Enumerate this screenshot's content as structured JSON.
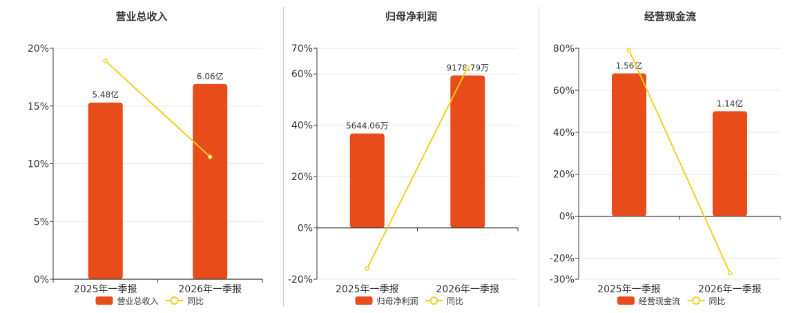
{
  "colors": {
    "bar": "#e84c1a",
    "line": "#f2cf1d",
    "grid": "#e5e5e5",
    "axis": "#333333",
    "text": "#333333"
  },
  "chart_data": [
    {
      "type": "bar",
      "title": "营业总收入",
      "categories": [
        "2025年一季报",
        "2026年一季报"
      ],
      "bar_labels": [
        "5.48亿",
        "6.06亿"
      ],
      "bar_series_name": "营业总收入",
      "bar_percent": [
        15.3,
        16.9
      ],
      "line_series_name": "同比",
      "line_values": [
        18.9,
        10.6
      ],
      "ylim": [
        0,
        20
      ],
      "yticks": [
        0,
        5,
        10,
        15,
        20
      ],
      "yticklabels": [
        "0%",
        "5%",
        "10%",
        "15%",
        "20%"
      ],
      "grid": true,
      "legend": "bottom"
    },
    {
      "type": "bar",
      "title": "归母净利润",
      "categories": [
        "2025年一季报",
        "2026年一季报"
      ],
      "bar_labels": [
        "5644.06万",
        "9178.79万"
      ],
      "bar_series_name": "归母净利润",
      "bar_percent": [
        36.8,
        59.4
      ],
      "line_series_name": "同比",
      "line_values": [
        -15.8,
        62.5
      ],
      "ylim": [
        -20,
        70
      ],
      "yticks": [
        -20,
        0,
        20,
        40,
        60,
        70
      ],
      "yticklabels": [
        "-20%",
        "0%",
        "20%",
        "40%",
        "60%",
        "70%"
      ],
      "grid": true,
      "legend": "bottom"
    },
    {
      "type": "bar",
      "title": "经营现金流",
      "categories": [
        "2025年一季报",
        "2026年一季报"
      ],
      "bar_labels": [
        "1.56亿",
        "1.14亿"
      ],
      "bar_series_name": "经营现金流",
      "bar_percent": [
        68,
        50
      ],
      "line_series_name": "同比",
      "line_values": [
        79,
        -27
      ],
      "ylim": [
        -30,
        80
      ],
      "yticks": [
        -30,
        -20,
        0,
        20,
        40,
        60,
        80
      ],
      "yticklabels": [
        "-30%",
        "-20%",
        "0%",
        "20%",
        "40%",
        "60%",
        "80%"
      ],
      "grid": true,
      "legend": "bottom"
    }
  ]
}
